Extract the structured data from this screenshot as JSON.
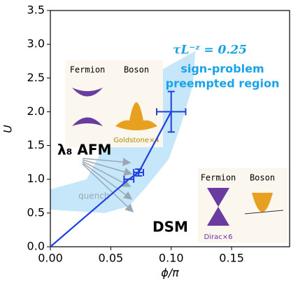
{
  "chart_data": {
    "type": "line",
    "x_label": "ϕ/π",
    "y_label": "U",
    "xlim": [
      0,
      0.198
    ],
    "ylim": [
      0,
      3.5
    ],
    "xticks": [
      {
        "value": 0,
        "label": "0.00"
      },
      0.05,
      {
        "value": 0.1,
        "label": "0.10"
      },
      0.15
    ],
    "yticks": [
      {
        "value": 0,
        "label": "0.0"
      },
      0.5,
      {
        "value": 1,
        "label": "1.0"
      },
      1.5,
      {
        "value": 2,
        "label": "2.0"
      },
      2.5,
      {
        "value": 3,
        "label": "3.0"
      },
      3.5
    ],
    "x": [
      0,
      0.065,
      0.073,
      0.1
    ],
    "series": [
      {
        "color": "#1f3fe0",
        "values": [
          0,
          1.0,
          1.1,
          2.0
        ],
        "xerr": [
          null,
          0.004,
          0.004,
          0.012
        ],
        "yerr": [
          null,
          null,
          0.05,
          0.3
        ]
      }
    ],
    "region": {
      "color": "#c6e6fa",
      "x": [
        0,
        0.03,
        0.045,
        0.06,
        0.09,
        0.12,
        0.118,
        0.108,
        0.098,
        0.08,
        0.065,
        0.045,
        0
      ],
      "y": [
        0.85,
        1.0,
        1.5,
        2.35,
        2.6,
        2.9,
        2.4,
        1.8,
        1.3,
        0.9,
        0.6,
        0.5,
        0.55
      ]
    },
    "annotations": {
      "tau": "τL⁻ᶻ = 0.25",
      "sign1": "sign-problem",
      "sign2": "preempted region",
      "afm": "λ₈ AFM",
      "quench": "quench",
      "dsm": "DSM"
    },
    "inset_top": {
      "left": "Fermion",
      "right": "Boson",
      "caption": "Goldstone×4"
    },
    "inset_bottom": {
      "left": "Fermion",
      "right": "Boson",
      "caption": "Dirac×6"
    }
  }
}
